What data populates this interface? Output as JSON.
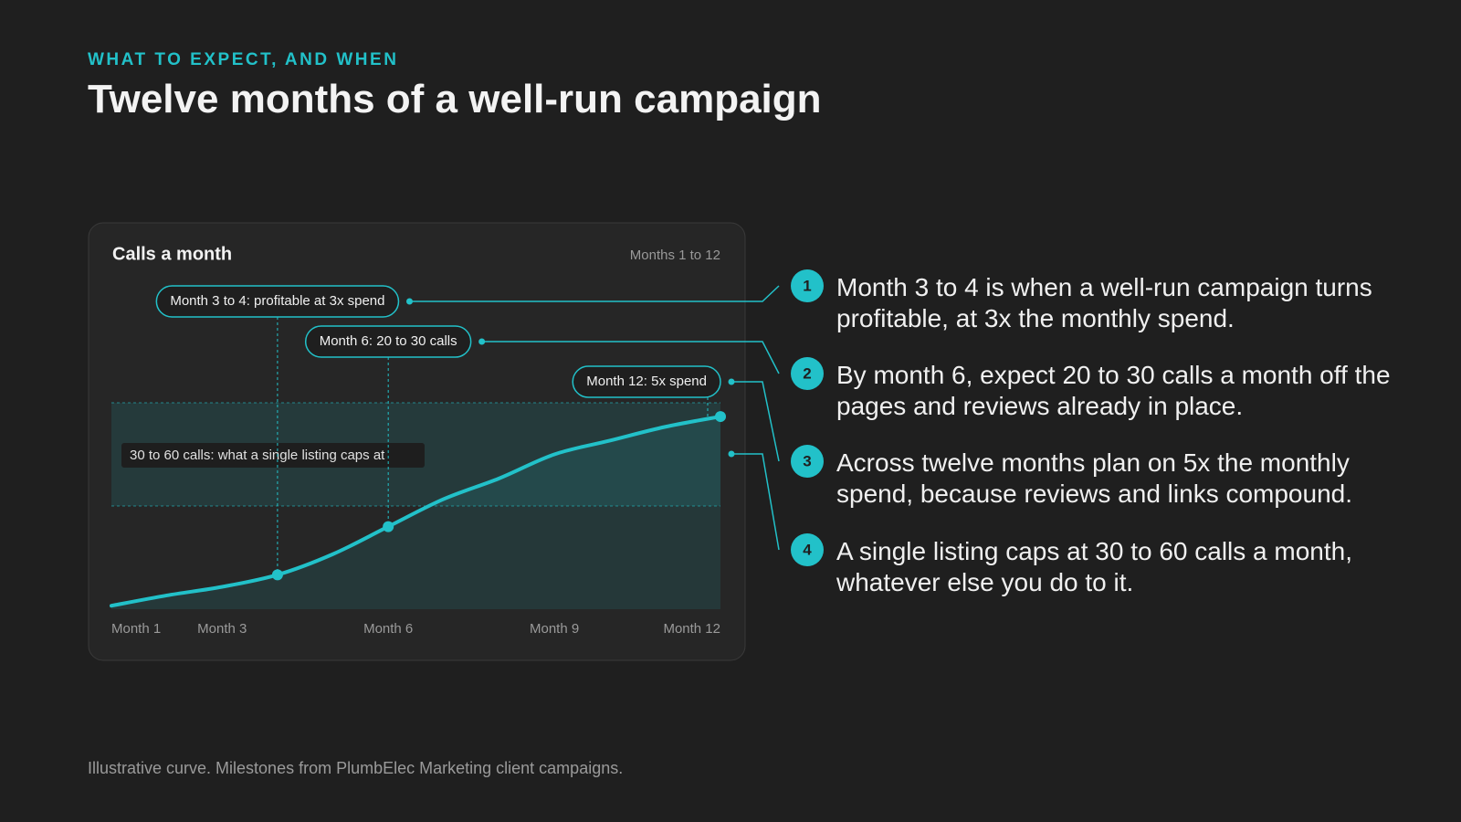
{
  "header": {
    "eyebrow": "WHAT TO EXPECT, AND WHEN",
    "title": "Twelve months of a well-run campaign"
  },
  "chart_data": {
    "type": "line",
    "title": "Calls a month",
    "subtitle": "Months 1 to 12",
    "x": [
      1,
      2,
      3,
      4,
      5,
      6,
      7,
      8,
      9,
      10,
      11,
      12
    ],
    "series": [
      {
        "color": "#22c1c9",
        "values": [
          1,
          4,
          6.5,
          10,
          16,
          24,
          32,
          38,
          45,
          49,
          53,
          56
        ]
      }
    ],
    "xlim": [
      1,
      12
    ],
    "xticks": [
      {
        "value": 1,
        "label": "Month 1"
      },
      {
        "value": 3,
        "label": "Month 3"
      },
      {
        "value": 6,
        "label": "Month 6"
      },
      {
        "value": 9,
        "label": "Month 9"
      },
      {
        "value": 12,
        "label": "Month 12"
      }
    ],
    "ylim": [
      0,
      60
    ],
    "band": {
      "low": 30,
      "high": 60,
      "label": "30 to 60 calls: what a single listing caps at"
    },
    "annotations": [
      {
        "x": 4,
        "label": "Month 3 to 4: profitable at 3x spend"
      },
      {
        "x": 6,
        "label": "Month 6: 20 to 30 calls"
      },
      {
        "x": 12,
        "label": "Month 12: 5x spend"
      }
    ]
  },
  "notes": [
    {
      "number": "1",
      "text": "Month 3 to 4 is when a well-run campaign turns profitable, at 3x the monthly spend."
    },
    {
      "number": "2",
      "text": "By month 6, expect 20 to 30 calls a month off the pages and reviews already in place."
    },
    {
      "number": "3",
      "text": "Across twelve months plan on 5x the monthly spend, because reviews and links compound."
    },
    {
      "number": "4",
      "text": "A single listing caps at 30 to 60 calls a month, whatever else you do to it."
    }
  ],
  "footnote": "Illustrative curve. Milestones from PlumbElec Marketing client campaigns."
}
